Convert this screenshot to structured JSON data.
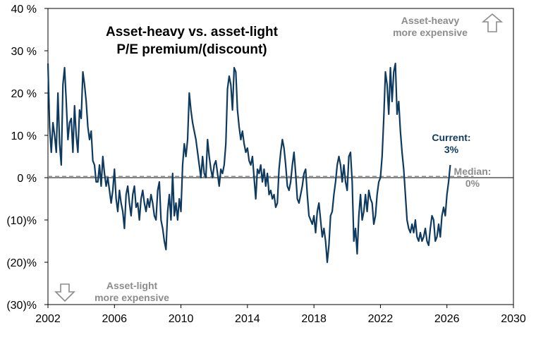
{
  "chart_data": {
    "type": "line",
    "title": "Asset-heavy vs. asset-light P/E premium/(discount)",
    "title_lines": [
      "Asset-heavy vs. asset-light",
      "P/E premium/(discount)"
    ],
    "xlim": [
      2002,
      2030
    ],
    "ylim": [
      -30,
      40
    ],
    "x_ticks": [
      2002,
      2006,
      2010,
      2014,
      2018,
      2022,
      2026,
      2030
    ],
    "x_tick_labels": [
      "2002",
      "2006",
      "2010",
      "2014",
      "2018",
      "2022",
      "2026",
      "2030"
    ],
    "y_ticks": [
      40,
      30,
      20,
      10,
      0,
      -10,
      -20,
      -30
    ],
    "y_tick_labels": [
      "40 %",
      "30 %",
      "20 %",
      "10 %",
      "0 %",
      "(10)%",
      "(20)%",
      "(30)%"
    ],
    "median": 0.2,
    "series": [
      {
        "name": "P/E premium/(discount)",
        "color": "#0f3a5f",
        "points": [
          [
            2002.0,
            27
          ],
          [
            2002.1,
            12
          ],
          [
            2002.2,
            6
          ],
          [
            2002.3,
            13
          ],
          [
            2002.4,
            10
          ],
          [
            2002.5,
            6
          ],
          [
            2002.6,
            20
          ],
          [
            2002.7,
            8
          ],
          [
            2002.8,
            3
          ],
          [
            2002.9,
            22
          ],
          [
            2003.0,
            26
          ],
          [
            2003.1,
            18
          ],
          [
            2003.2,
            9
          ],
          [
            2003.3,
            13
          ],
          [
            2003.4,
            14
          ],
          [
            2003.5,
            6
          ],
          [
            2003.6,
            17
          ],
          [
            2003.7,
            10
          ],
          [
            2003.8,
            6
          ],
          [
            2003.9,
            16
          ],
          [
            2004.0,
            14
          ],
          [
            2004.1,
            25
          ],
          [
            2004.2,
            22
          ],
          [
            2004.3,
            18
          ],
          [
            2004.4,
            12
          ],
          [
            2004.5,
            9
          ],
          [
            2004.6,
            11
          ],
          [
            2004.7,
            4
          ],
          [
            2004.8,
            3
          ],
          [
            2004.9,
            -1
          ],
          [
            2005.0,
            -1
          ],
          [
            2005.1,
            3
          ],
          [
            2005.2,
            -2
          ],
          [
            2005.3,
            5
          ],
          [
            2005.4,
            1
          ],
          [
            2005.5,
            -2
          ],
          [
            2005.6,
            0
          ],
          [
            2005.7,
            -3
          ],
          [
            2005.8,
            -6
          ],
          [
            2005.9,
            -3
          ],
          [
            2006.0,
            2
          ],
          [
            2006.1,
            -5
          ],
          [
            2006.2,
            -8
          ],
          [
            2006.3,
            -3
          ],
          [
            2006.4,
            -6
          ],
          [
            2006.5,
            -8
          ],
          [
            2006.6,
            -12
          ],
          [
            2006.7,
            -4
          ],
          [
            2006.8,
            -2
          ],
          [
            2006.9,
            -6
          ],
          [
            2007.0,
            -9
          ],
          [
            2007.1,
            -4
          ],
          [
            2007.2,
            -2
          ],
          [
            2007.3,
            -7
          ],
          [
            2007.4,
            -6
          ],
          [
            2007.5,
            -10
          ],
          [
            2007.6,
            -5
          ],
          [
            2007.7,
            -3
          ],
          [
            2007.8,
            -6
          ],
          [
            2007.9,
            -8
          ],
          [
            2008.0,
            -5
          ],
          [
            2008.1,
            -7
          ],
          [
            2008.2,
            -4
          ],
          [
            2008.3,
            -6
          ],
          [
            2008.4,
            -9
          ],
          [
            2008.5,
            -10
          ],
          [
            2008.6,
            -3
          ],
          [
            2008.7,
            -1
          ],
          [
            2008.8,
            -10
          ],
          [
            2008.9,
            -12
          ],
          [
            2009.0,
            -15
          ],
          [
            2009.1,
            -17
          ],
          [
            2009.2,
            -8
          ],
          [
            2009.3,
            -4
          ],
          [
            2009.4,
            -10
          ],
          [
            2009.5,
            1
          ],
          [
            2009.6,
            -9
          ],
          [
            2009.7,
            -6
          ],
          [
            2009.8,
            -10
          ],
          [
            2009.9,
            -5
          ],
          [
            2010.0,
            -8
          ],
          [
            2010.1,
            3
          ],
          [
            2010.2,
            8
          ],
          [
            2010.3,
            5
          ],
          [
            2010.4,
            9
          ],
          [
            2010.5,
            20
          ],
          [
            2010.6,
            16
          ],
          [
            2010.7,
            13
          ],
          [
            2010.8,
            11
          ],
          [
            2010.9,
            9
          ],
          [
            2011.0,
            6
          ],
          [
            2011.1,
            3
          ],
          [
            2011.2,
            0
          ],
          [
            2011.3,
            5
          ],
          [
            2011.4,
            1
          ],
          [
            2011.5,
            0
          ],
          [
            2011.6,
            9
          ],
          [
            2011.7,
            5
          ],
          [
            2011.8,
            2
          ],
          [
            2011.9,
            0
          ],
          [
            2012.0,
            3
          ],
          [
            2012.1,
            4
          ],
          [
            2012.2,
            1
          ],
          [
            2012.3,
            -2
          ],
          [
            2012.4,
            2
          ],
          [
            2012.5,
            1
          ],
          [
            2012.6,
            3
          ],
          [
            2012.7,
            8
          ],
          [
            2012.8,
            21
          ],
          [
            2012.9,
            24
          ],
          [
            2013.0,
            22
          ],
          [
            2013.1,
            16
          ],
          [
            2013.2,
            26
          ],
          [
            2013.3,
            25
          ],
          [
            2013.4,
            16
          ],
          [
            2013.5,
            12
          ],
          [
            2013.6,
            9
          ],
          [
            2013.7,
            11
          ],
          [
            2013.8,
            8
          ],
          [
            2013.9,
            6
          ],
          [
            2014.0,
            7
          ],
          [
            2014.1,
            4
          ],
          [
            2014.2,
            3
          ],
          [
            2014.3,
            5
          ],
          [
            2014.4,
            0
          ],
          [
            2014.5,
            -5
          ],
          [
            2014.6,
            2
          ],
          [
            2014.7,
            1
          ],
          [
            2014.8,
            3
          ],
          [
            2014.9,
            -1
          ],
          [
            2015.0,
            2
          ],
          [
            2015.1,
            -2
          ],
          [
            2015.2,
            1
          ],
          [
            2015.3,
            -4
          ],
          [
            2015.4,
            -3
          ],
          [
            2015.5,
            -5
          ],
          [
            2015.6,
            -4
          ],
          [
            2015.7,
            -7
          ],
          [
            2015.8,
            -6
          ],
          [
            2015.9,
            2
          ],
          [
            2016.0,
            6
          ],
          [
            2016.1,
            9
          ],
          [
            2016.2,
            7
          ],
          [
            2016.3,
            3
          ],
          [
            2016.4,
            -2
          ],
          [
            2016.5,
            -3
          ],
          [
            2016.6,
            -1
          ],
          [
            2016.7,
            3
          ],
          [
            2016.8,
            6
          ],
          [
            2016.9,
            1
          ],
          [
            2017.0,
            -5
          ],
          [
            2017.1,
            -6
          ],
          [
            2017.2,
            -4
          ],
          [
            2017.3,
            -2
          ],
          [
            2017.4,
            1
          ],
          [
            2017.5,
            2
          ],
          [
            2017.6,
            -4
          ],
          [
            2017.7,
            -9
          ],
          [
            2017.8,
            -10
          ],
          [
            2017.9,
            -11
          ],
          [
            2018.0,
            -9
          ],
          [
            2018.1,
            -13
          ],
          [
            2018.2,
            -8
          ],
          [
            2018.3,
            -6
          ],
          [
            2018.4,
            -10
          ],
          [
            2018.5,
            -14
          ],
          [
            2018.6,
            -12
          ],
          [
            2018.7,
            -15
          ],
          [
            2018.8,
            -20
          ],
          [
            2018.9,
            -16
          ],
          [
            2019.0,
            -9
          ],
          [
            2019.1,
            -8
          ],
          [
            2019.2,
            -4
          ],
          [
            2019.3,
            -1
          ],
          [
            2019.4,
            3
          ],
          [
            2019.5,
            5
          ],
          [
            2019.6,
            3
          ],
          [
            2019.7,
            -1
          ],
          [
            2019.8,
            3
          ],
          [
            2019.9,
            -1
          ],
          [
            2020.0,
            -3
          ],
          [
            2020.1,
            5
          ],
          [
            2020.2,
            6
          ],
          [
            2020.3,
            -1
          ],
          [
            2020.4,
            -15
          ],
          [
            2020.5,
            -12
          ],
          [
            2020.6,
            -18
          ],
          [
            2020.7,
            -9
          ],
          [
            2020.8,
            -4
          ],
          [
            2020.9,
            -10
          ],
          [
            2021.0,
            -8
          ],
          [
            2021.1,
            -4
          ],
          [
            2021.2,
            -8
          ],
          [
            2021.3,
            -3
          ],
          [
            2021.4,
            -5
          ],
          [
            2021.5,
            -6
          ],
          [
            2021.6,
            -11
          ],
          [
            2021.7,
            -9
          ],
          [
            2021.8,
            -4
          ],
          [
            2021.9,
            -1
          ],
          [
            2022.0,
            0
          ],
          [
            2022.1,
            5
          ],
          [
            2022.2,
            14
          ],
          [
            2022.3,
            25
          ],
          [
            2022.4,
            22
          ],
          [
            2022.5,
            15
          ],
          [
            2022.6,
            26
          ],
          [
            2022.7,
            18
          ],
          [
            2022.8,
            25
          ],
          [
            2022.9,
            27
          ],
          [
            2023.0,
            15
          ],
          [
            2023.1,
            18
          ],
          [
            2023.2,
            11
          ],
          [
            2023.3,
            6
          ],
          [
            2023.4,
            2
          ],
          [
            2023.5,
            -4
          ],
          [
            2023.6,
            -10
          ],
          [
            2023.7,
            -12
          ],
          [
            2023.8,
            -13
          ],
          [
            2023.9,
            -11
          ],
          [
            2024.0,
            -13
          ],
          [
            2024.1,
            -10
          ],
          [
            2024.2,
            -14
          ],
          [
            2024.3,
            -15
          ],
          [
            2024.4,
            -13
          ],
          [
            2024.5,
            -15
          ],
          [
            2024.6,
            -14
          ],
          [
            2024.7,
            -12
          ],
          [
            2024.8,
            -15
          ],
          [
            2024.9,
            -16
          ],
          [
            2025.0,
            -12
          ],
          [
            2025.1,
            -9
          ],
          [
            2025.2,
            -10
          ],
          [
            2025.3,
            -15
          ],
          [
            2025.4,
            -14
          ],
          [
            2025.5,
            -11
          ],
          [
            2025.6,
            -14
          ],
          [
            2025.7,
            -9
          ],
          [
            2025.8,
            -7
          ],
          [
            2025.9,
            -9
          ],
          [
            2026.0,
            -4
          ],
          [
            2026.1,
            -1
          ],
          [
            2026.2,
            3
          ]
        ]
      }
    ],
    "annotations": {
      "heavy_line1": "Asset-heavy",
      "heavy_line2": "more expensive",
      "light_line1": "Asset-light",
      "light_line2": "more expensive",
      "current_line1": "Current:",
      "current_line2": "3%",
      "median_line1": "Median:",
      "median_line2": "0%"
    },
    "colors": {
      "line": "#0f3a5f",
      "median": "#8c8c8c",
      "annotation_grey": "#8c8c8c"
    }
  }
}
